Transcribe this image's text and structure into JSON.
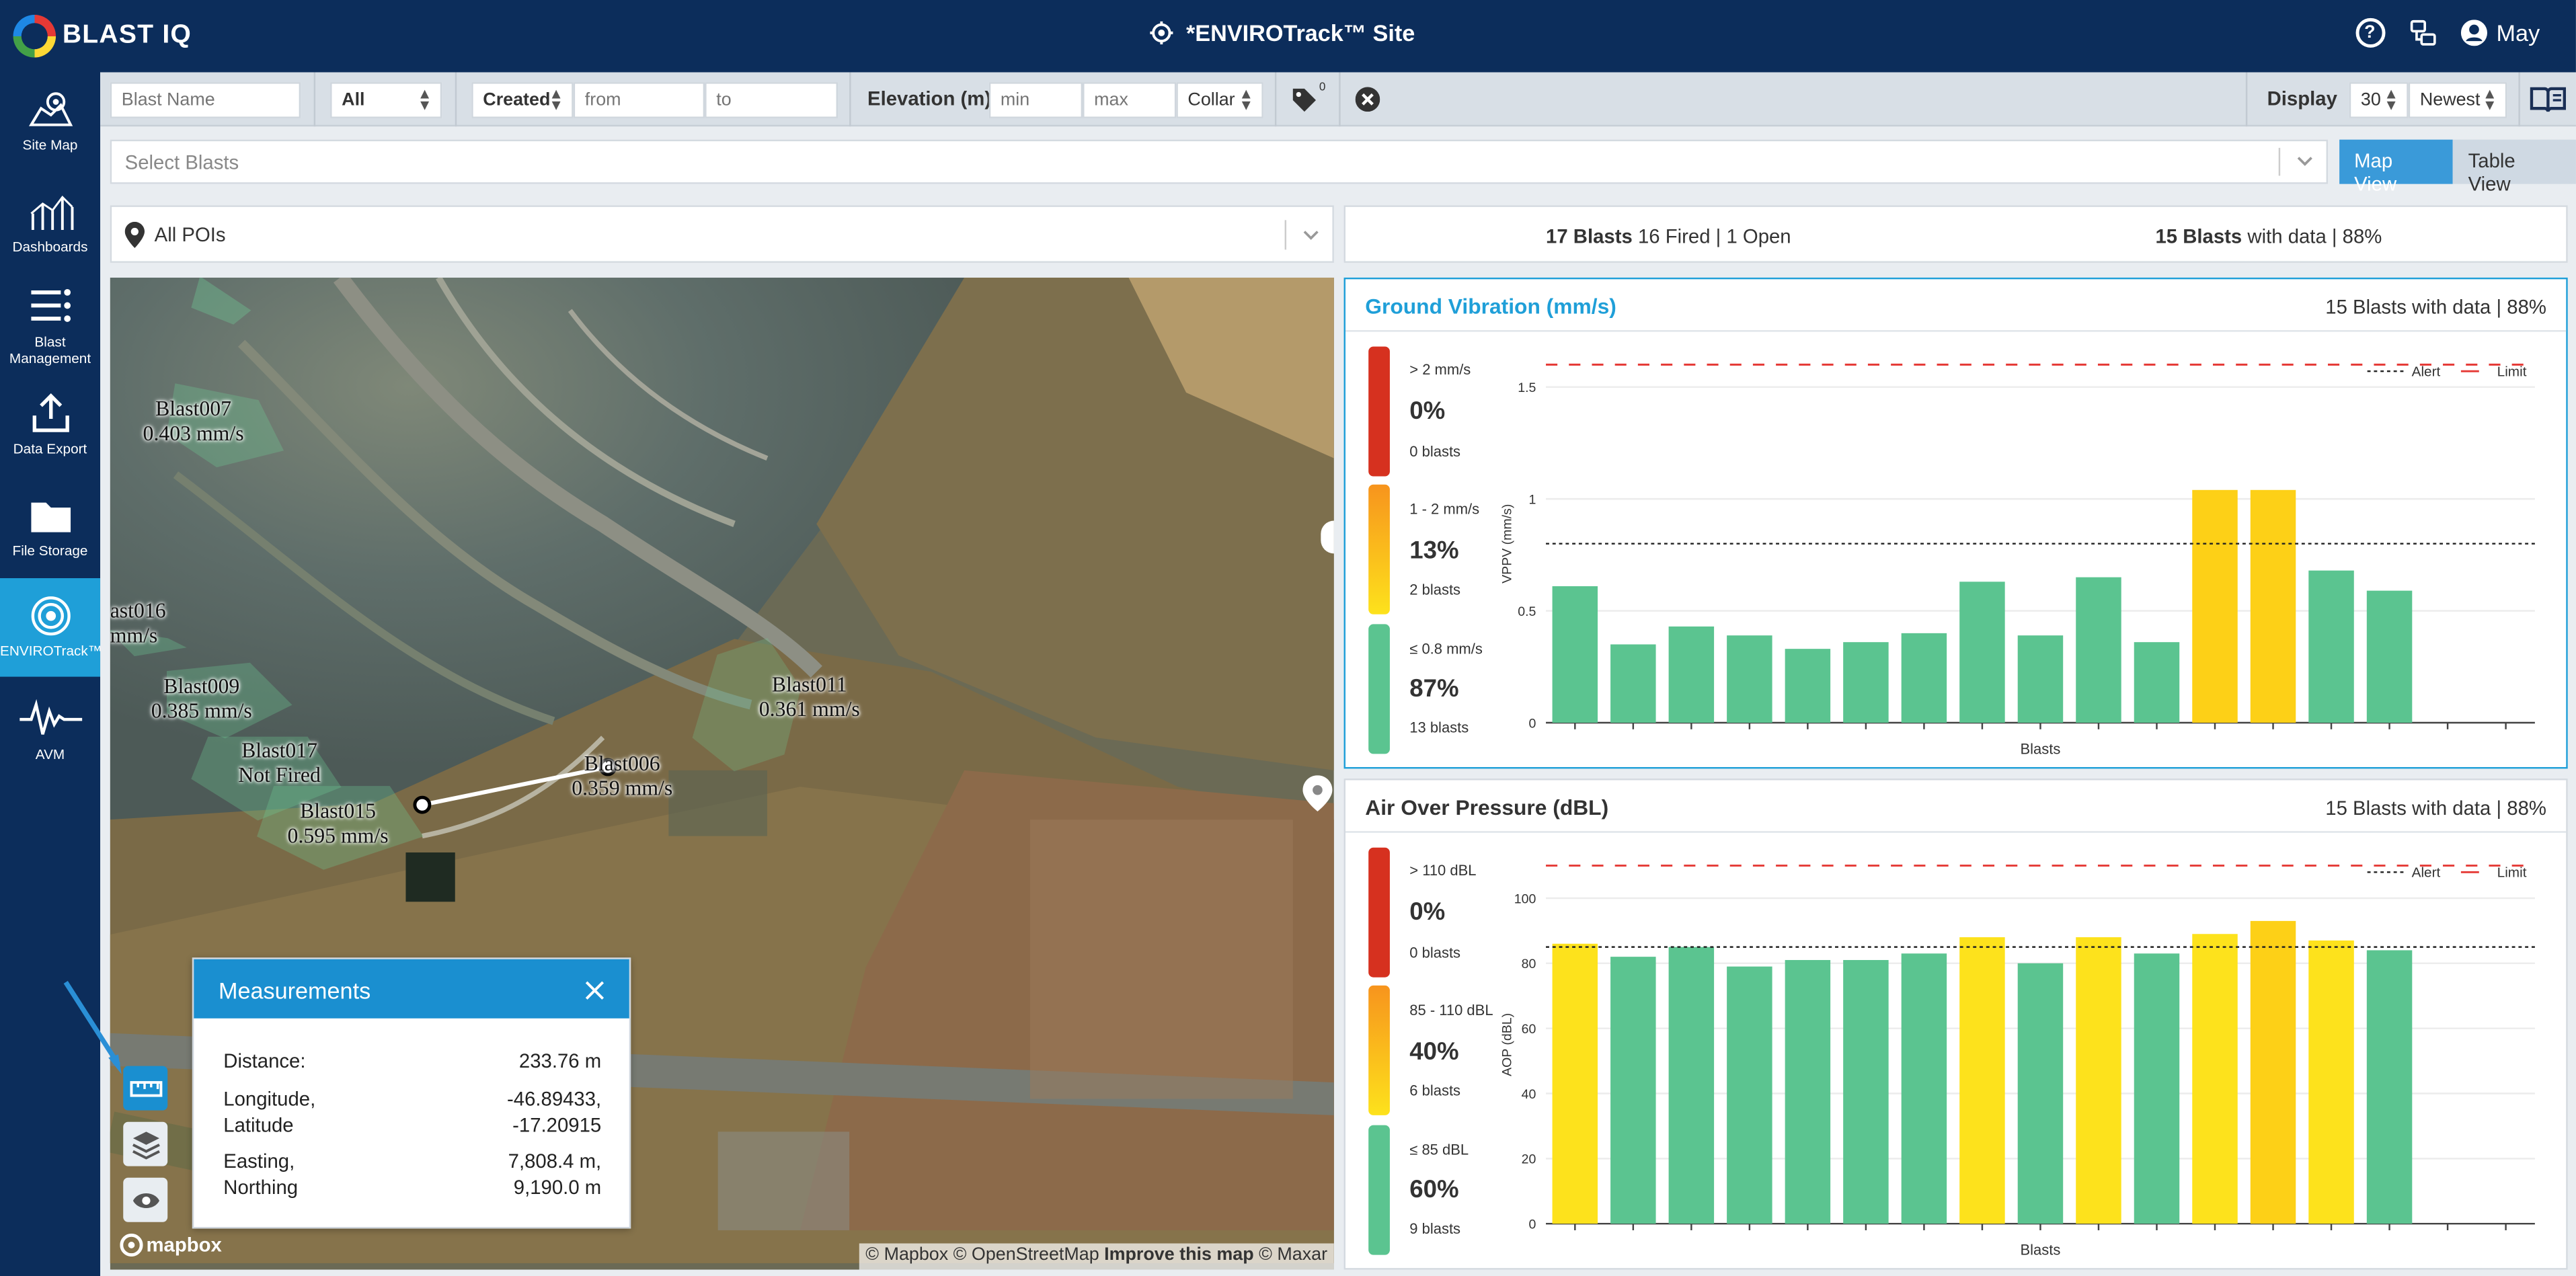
{
  "app": {
    "logo_text": "BLAST IQ",
    "site_title": "*ENVIROTrack™ Site",
    "user_name": "May"
  },
  "sidebar": {
    "items": [
      {
        "label": "Site Map",
        "icon": "site-map-icon"
      },
      {
        "label": "Dashboards",
        "icon": "dashboards-icon"
      },
      {
        "label": "Blast Management",
        "icon": "blast-management-icon"
      },
      {
        "label": "Data Export",
        "icon": "data-export-icon"
      },
      {
        "label": "File Storage",
        "icon": "folder-icon"
      },
      {
        "label": "ENVIROTrack™",
        "icon": "envirotrack-icon",
        "active": true
      },
      {
        "label": "AVM",
        "icon": "waveform-icon"
      }
    ]
  },
  "filters": {
    "blast_name_placeholder": "Blast Name",
    "status_value": "All",
    "date_type_value": "Created",
    "from_placeholder": "from",
    "to_placeholder": "to",
    "elevation_label": "Elevation (m)",
    "min_placeholder": "min",
    "max_placeholder": "max",
    "elevation_ref_value": "Collar",
    "tag_count": "0",
    "display_label": "Display",
    "display_count_value": "30",
    "sort_value": "Newest"
  },
  "select_blasts_placeholder": "Select Blasts",
  "view_toggle": {
    "map_label": "Map View",
    "table_label": "Table View",
    "active": "map"
  },
  "poi": {
    "value": "All POIs"
  },
  "summary": {
    "blasts_count": "17 Blasts",
    "blasts_status": "16 Fired | 1 Open",
    "with_data_count": "15 Blasts",
    "with_data_text": "with data | 88%"
  },
  "map": {
    "labels": [
      {
        "name": "Blast007",
        "value": "0.403 mm/s"
      },
      {
        "name": "ast016",
        "value": "mm/s"
      },
      {
        "name": "Blast009",
        "value": "0.385 mm/s"
      },
      {
        "name": "Blast017",
        "value": "Not Fired"
      },
      {
        "name": "Blast015",
        "value": "0.595 mm/s"
      },
      {
        "name": "Blast011",
        "value": "0.361 mm/s"
      },
      {
        "name": "Blast006",
        "value": "0.359 mm/s"
      }
    ],
    "attribution": "© Mapbox © OpenStreetMap",
    "attribution_bold": "Improve this map",
    "attribution_end": "© Maxar",
    "mapbox_logo": "mapbox"
  },
  "measurements": {
    "title": "Measurements",
    "rows": [
      {
        "label": "Distance:",
        "value": "233.76 m"
      },
      {
        "label": "Longitude,",
        "label2": "Latitude",
        "value": "-46.89433,",
        "value2": "-17.20915"
      },
      {
        "label": "Easting,",
        "label2": "Northing",
        "value": "7,808.4 m,",
        "value2": "9,190.0 m"
      }
    ]
  },
  "colors": {
    "navy": "#0c2d5b",
    "accent": "#1f9fd8",
    "green": "#5bc490",
    "yellow": "#fde21c",
    "amber": "#fdd017",
    "red": "#e0332b",
    "orange": "#f79a1e"
  },
  "chart_data": [
    {
      "type": "bar",
      "title": "Ground Vibration (mm/s)",
      "subtitle": "15 Blasts with data | 88%",
      "xlabel": "Blasts",
      "ylabel": "VPPV (mm/s)",
      "ylim": [
        0,
        1.6
      ],
      "yticks": [
        "0",
        "0.5",
        "1",
        "1.5"
      ],
      "ytick_values": [
        0,
        0.5,
        1,
        1.5
      ],
      "alert": 0.8,
      "limit": 1.6,
      "legend": {
        "alert": "Alert",
        "limit": "Limit"
      },
      "values": [
        0.61,
        0.35,
        0.43,
        0.39,
        0.33,
        0.36,
        0.4,
        0.63,
        0.39,
        0.65,
        0.36,
        1.04,
        1.04,
        0.68,
        0.59
      ],
      "bar_colors": [
        "green",
        "green",
        "green",
        "green",
        "green",
        "green",
        "green",
        "green",
        "green",
        "green",
        "green",
        "amber",
        "amber",
        "green",
        "green"
      ],
      "slots": 17,
      "bands": [
        {
          "range": "> 2 mm/s",
          "percent": "0%",
          "count": "0 blasts",
          "color": "red"
        },
        {
          "range": "1 - 2 mm/s",
          "percent": "13%",
          "count": "2 blasts",
          "color": "orange-yellow"
        },
        {
          "range": "≤ 0.8 mm/s",
          "percent": "87%",
          "count": "13 blasts",
          "color": "green"
        }
      ]
    },
    {
      "type": "bar",
      "title": "Air Over Pressure (dBL)",
      "subtitle": "15 Blasts with data | 88%",
      "xlabel": "Blasts",
      "ylabel": "AOP (dBL)",
      "ylim": [
        0,
        110
      ],
      "yticks": [
        "0",
        "20",
        "40",
        "60",
        "80",
        "100"
      ],
      "ytick_values": [
        0,
        20,
        40,
        60,
        80,
        100
      ],
      "alert": 85,
      "limit": 110,
      "legend": {
        "alert": "Alert",
        "limit": "Limit"
      },
      "values": [
        86,
        82,
        85,
        79,
        81,
        81,
        83,
        88,
        80,
        88,
        83,
        89,
        93,
        87,
        84
      ],
      "bar_colors": [
        "yellow",
        "green",
        "green",
        "green",
        "green",
        "green",
        "green",
        "yellow",
        "green",
        "yellow",
        "green",
        "yellow",
        "amber",
        "yellow",
        "green"
      ],
      "slots": 17,
      "bands": [
        {
          "range": "> 110 dBL",
          "percent": "0%",
          "count": "0 blasts",
          "color": "red"
        },
        {
          "range": "85 - 110 dBL",
          "percent": "40%",
          "count": "6 blasts",
          "color": "orange-yellow"
        },
        {
          "range": "≤ 85 dBL",
          "percent": "60%",
          "count": "9 blasts",
          "color": "green"
        }
      ]
    }
  ]
}
